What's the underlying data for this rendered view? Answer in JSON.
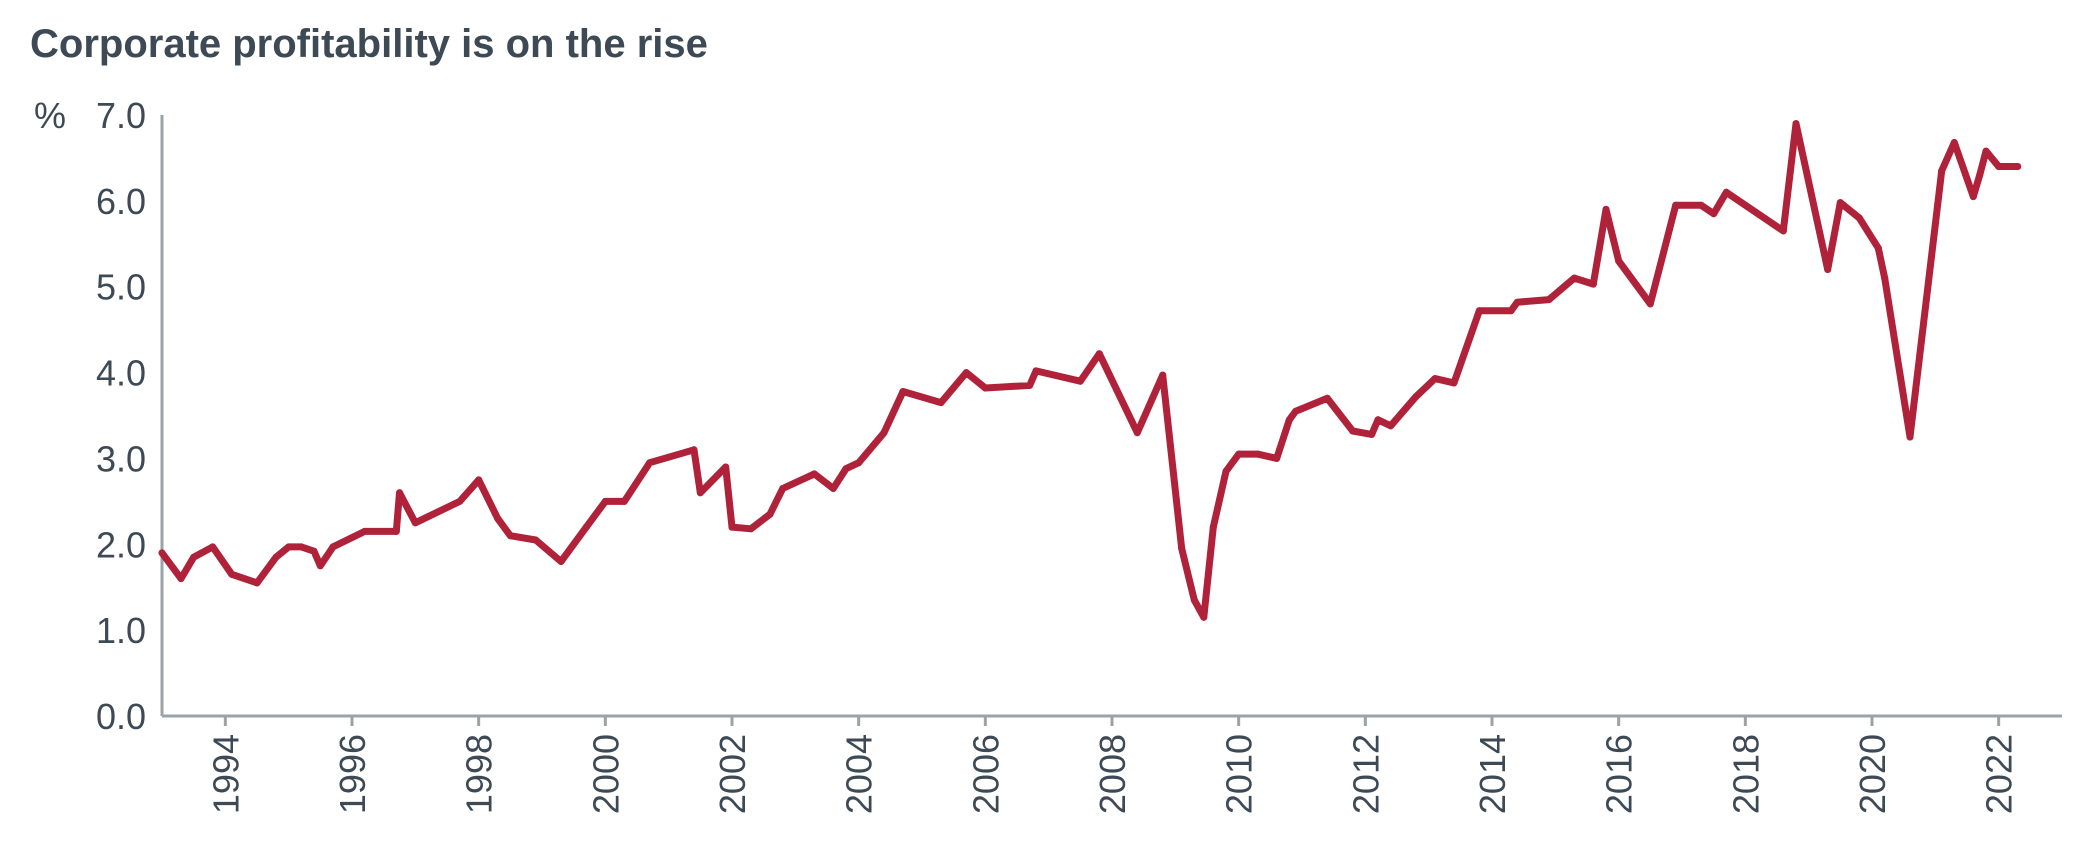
{
  "chart_data": {
    "type": "line",
    "title": "Corporate profitability is on the rise",
    "ylabel": "%",
    "xlabel": "",
    "ylim": [
      0,
      7
    ],
    "yticks": [
      "0.0",
      "1.0",
      "2.0",
      "3.0",
      "4.0",
      "5.0",
      "6.0",
      "7.0"
    ],
    "xticks": [
      "1994",
      "1996",
      "1998",
      "2000",
      "2002",
      "2004",
      "2006",
      "2008",
      "2010",
      "2012",
      "2014",
      "2016",
      "2018",
      "2020",
      "2022"
    ],
    "grid": false,
    "legend": "none",
    "colors": {
      "line": "#b0223a",
      "axis": "#9aa3aa",
      "text": "#3d4a55"
    },
    "series": [
      {
        "x": [
          1993.0,
          1993.3,
          1993.5,
          1993.8,
          1994.1,
          1994.5,
          1994.8,
          1995.0,
          1995.2,
          1995.4,
          1995.5,
          1995.7,
          1996.2,
          1996.7,
          1996.75,
          1997.0,
          1997.7,
          1998.0,
          1998.3,
          1998.5,
          1998.9,
          1999.3,
          1999.7,
          2000.0,
          2000.3,
          2000.7,
          2001.4,
          2001.5,
          2001.9,
          2002.0,
          2002.3,
          2002.6,
          2002.8,
          2003.3,
          2003.6,
          2003.8,
          2004.0,
          2004.4,
          2004.7,
          2005.3,
          2005.7,
          2006.0,
          2006.7,
          2006.8,
          2007.5,
          2007.8,
          2008.4,
          2008.8,
          2009.1,
          2009.3,
          2009.45,
          2009.6,
          2009.8,
          2010.0,
          2010.3,
          2010.6,
          2010.8,
          2010.9,
          2011.4,
          2011.8,
          2012.1,
          2012.2,
          2012.4,
          2012.8,
          2013.1,
          2013.4,
          2013.8,
          2014.3,
          2014.4,
          2014.9,
          2015.3,
          2015.6,
          2015.8,
          2016.0,
          2016.5,
          2016.9,
          2017.3,
          2017.5,
          2017.7,
          2018.6,
          2018.8,
          2019.3,
          2019.5,
          2019.8,
          2020.1,
          2020.2,
          2020.6,
          2021.1,
          2021.3,
          2021.6,
          2021.7,
          2021.8,
          2022.0,
          2022.3
        ],
        "values": [
          1.9,
          1.6,
          1.85,
          1.97,
          1.65,
          1.55,
          1.85,
          1.97,
          1.97,
          1.92,
          1.75,
          1.97,
          2.15,
          2.15,
          2.6,
          2.25,
          2.5,
          2.75,
          2.3,
          2.1,
          2.05,
          1.8,
          2.2,
          2.5,
          2.5,
          2.95,
          3.1,
          2.6,
          2.9,
          2.2,
          2.18,
          2.35,
          2.65,
          2.82,
          2.65,
          2.88,
          2.95,
          3.3,
          3.78,
          3.65,
          4.0,
          3.82,
          3.85,
          4.02,
          3.9,
          4.22,
          3.3,
          3.97,
          1.95,
          1.35,
          1.15,
          2.2,
          2.85,
          3.05,
          3.05,
          3.0,
          3.45,
          3.55,
          3.7,
          3.32,
          3.28,
          3.45,
          3.38,
          3.72,
          3.93,
          3.88,
          4.72,
          4.72,
          4.82,
          4.85,
          5.1,
          5.03,
          5.9,
          5.3,
          4.8,
          5.95,
          5.95,
          5.85,
          6.1,
          5.65,
          6.9,
          5.2,
          5.98,
          5.8,
          5.45,
          5.1,
          3.25,
          6.35,
          6.68,
          6.05,
          6.3,
          6.58,
          6.4,
          6.4
        ]
      }
    ]
  }
}
